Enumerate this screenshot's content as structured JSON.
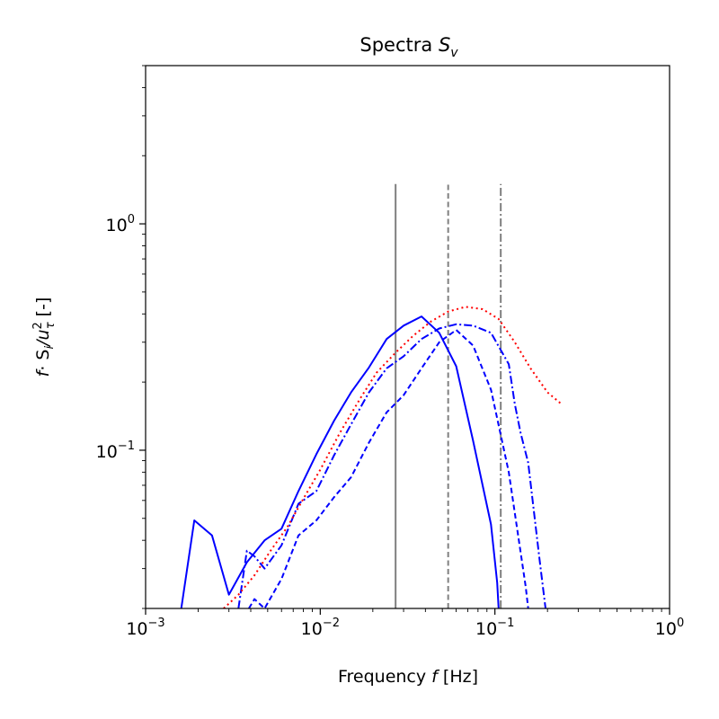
{
  "chart_data": {
    "type": "line",
    "title": "Spectra",
    "title_math": "S",
    "title_sub": "v",
    "xlabel": "Frequency",
    "xlabel_math": "f",
    "xlabel_unit": "[Hz]",
    "ylabel_parts": [
      "f",
      "· S",
      "i",
      "/u",
      "2",
      "τ",
      "[-]"
    ],
    "xscale": "log",
    "yscale": "log",
    "xlim": [
      0.001,
      1
    ],
    "ylim": [
      0.02,
      5
    ],
    "xticks": [
      {
        "value": 0.001,
        "base": "10",
        "exp": "−3"
      },
      {
        "value": 0.01,
        "base": "10",
        "exp": "−2"
      },
      {
        "value": 0.1,
        "base": "10",
        "exp": "−1"
      },
      {
        "value": 1,
        "base": "10",
        "exp": "0"
      }
    ],
    "yticks": [
      {
        "value": 0.1,
        "base": "10",
        "exp": "−1"
      },
      {
        "value": 1,
        "base": "10",
        "exp": "0"
      }
    ],
    "colors": {
      "blue": "#0000ff",
      "red": "#ff0000",
      "gray": "#808080"
    },
    "vlines": [
      {
        "x": 0.027,
        "style": "solid",
        "y_top": 1.5
      },
      {
        "x": 0.054,
        "style": "dashed",
        "y_top": 1.5
      },
      {
        "x": 0.108,
        "style": "dashdot",
        "y_top": 1.5
      }
    ],
    "series": [
      {
        "style": "solid",
        "color": "#0000ff",
        "x": [
          0.0016,
          0.0019,
          0.0024,
          0.003,
          0.0038,
          0.0048,
          0.006,
          0.0075,
          0.0095,
          0.012,
          0.015,
          0.019,
          0.024,
          0.03,
          0.038,
          0.048,
          0.06,
          0.075,
          0.095,
          0.103,
          0.105
        ],
        "y": [
          0.02,
          0.049,
          0.042,
          0.023,
          0.032,
          0.04,
          0.045,
          0.066,
          0.096,
          0.135,
          0.18,
          0.232,
          0.31,
          0.355,
          0.39,
          0.33,
          0.235,
          0.11,
          0.047,
          0.026,
          0.02
        ]
      },
      {
        "style": "dashdot",
        "color": "#0000ff",
        "x": [
          0.0034,
          0.0038,
          0.0042,
          0.0048,
          0.006,
          0.0075,
          0.0095,
          0.012,
          0.015,
          0.019,
          0.024,
          0.03,
          0.038,
          0.048,
          0.06,
          0.075,
          0.095,
          0.12,
          0.13,
          0.14,
          0.155,
          0.18,
          0.195
        ],
        "y": [
          0.02,
          0.036,
          0.034,
          0.03,
          0.038,
          0.058,
          0.066,
          0.095,
          0.13,
          0.18,
          0.23,
          0.26,
          0.31,
          0.345,
          0.36,
          0.355,
          0.33,
          0.24,
          0.16,
          0.12,
          0.088,
          0.033,
          0.02
        ]
      },
      {
        "style": "dashed",
        "color": "#0000ff",
        "x": [
          0.0039,
          0.0042,
          0.0048,
          0.006,
          0.0075,
          0.0095,
          0.012,
          0.015,
          0.019,
          0.024,
          0.03,
          0.038,
          0.048,
          0.06,
          0.075,
          0.095,
          0.12,
          0.15,
          0.155
        ],
        "y": [
          0.02,
          0.022,
          0.02,
          0.027,
          0.042,
          0.049,
          0.062,
          0.076,
          0.108,
          0.147,
          0.175,
          0.23,
          0.3,
          0.34,
          0.29,
          0.185,
          0.08,
          0.025,
          0.02
        ]
      },
      {
        "style": "dotted",
        "color": "#ff0000",
        "x": [
          0.0028,
          0.0034,
          0.0042,
          0.0052,
          0.0065,
          0.008,
          0.01,
          0.013,
          0.017,
          0.021,
          0.027,
          0.034,
          0.043,
          0.054,
          0.068,
          0.085,
          0.105,
          0.13,
          0.16,
          0.2,
          0.24
        ],
        "y": [
          0.02,
          0.023,
          0.028,
          0.036,
          0.046,
          0.061,
          0.082,
          0.12,
          0.17,
          0.22,
          0.27,
          0.32,
          0.37,
          0.41,
          0.43,
          0.42,
          0.38,
          0.3,
          0.23,
          0.18,
          0.16
        ]
      }
    ]
  }
}
